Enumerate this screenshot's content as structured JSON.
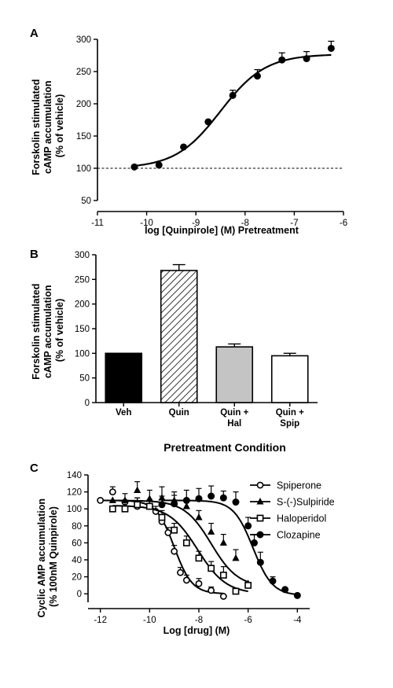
{
  "chart_data": [
    {
      "panel": "A",
      "type": "line",
      "ylabel": [
        "Forskolin stimulated",
        "cAMP accumulation",
        "(% of vehicle)"
      ],
      "xlabel": "log [Quinpirole] (M) Pretreatment",
      "xlim": [
        -11,
        -6
      ],
      "ylim": [
        50,
        300
      ],
      "xticks": [
        -11,
        -10,
        -9,
        -8,
        -7,
        -6
      ],
      "yticks": [
        50,
        100,
        150,
        200,
        250,
        300
      ],
      "reference_line": 100,
      "fit": {
        "bottom": 100,
        "top": 277,
        "logEC50": -8.5,
        "hill": 0.95
      },
      "series": [
        {
          "x": [
            -10.25,
            -9.75,
            -9.25,
            -8.75,
            -8.25,
            -7.75,
            -7.25,
            -6.75,
            -6.25
          ],
          "y": [
            102,
            105,
            133,
            172,
            213,
            243,
            268,
            270,
            286
          ],
          "err": [
            0,
            0,
            0,
            0,
            8,
            10,
            11,
            11,
            11
          ]
        }
      ]
    },
    {
      "panel": "B",
      "type": "bar",
      "ylabel": [
        "Forskolin stimulated",
        "cAMP accumulation",
        "(% of vehicle)"
      ],
      "xlabel": "Pretreatment Condition",
      "ylim": [
        0,
        300
      ],
      "yticks": [
        0,
        50,
        100,
        150,
        200,
        250,
        300
      ],
      "categories": [
        [
          "Veh"
        ],
        [
          "Quin"
        ],
        [
          "Quin +",
          "Hal"
        ],
        [
          "Quin +",
          "Spip"
        ]
      ],
      "values": [
        100,
        268,
        113,
        95
      ],
      "err": [
        0,
        12,
        6,
        5
      ],
      "fills": [
        "#000000",
        "hatch",
        "#c4c4c4",
        "#ffffff"
      ]
    },
    {
      "panel": "C",
      "type": "line",
      "ylabel": [
        "Cyclic AMP accumulation",
        "(% 100nM Quinpirole)"
      ],
      "xlabel": "Log [drug] (M)",
      "xlim": [
        -12.5,
        -3.5
      ],
      "ylim": [
        -10,
        140
      ],
      "xticks": [
        -12,
        -10,
        -8,
        -6,
        -4
      ],
      "yticks": [
        0,
        20,
        40,
        60,
        80,
        100,
        120,
        140
      ],
      "series": [
        {
          "name": "Spiperone",
          "marker": "circle-open",
          "x": [
            -12,
            -11.5,
            -11,
            -10.5,
            -10,
            -9.75,
            -9.5,
            -9.25,
            -9,
            -8.75,
            -8.5,
            -8,
            -7.5,
            -7
          ],
          "y": [
            110,
            120,
            108,
            103,
            103,
            97,
            85,
            72,
            50,
            25,
            16,
            12,
            4,
            -3
          ],
          "err": [
            0,
            6,
            10,
            10,
            8,
            6,
            7,
            6,
            7,
            6,
            6,
            6,
            4,
            0
          ],
          "fit": {
            "top": 110,
            "bottom": 0,
            "logIC50": -9.0,
            "hill": 1.2
          }
        },
        {
          "name": "S-(-)Sulpiride",
          "marker": "triangle-filled",
          "x": [
            -11.5,
            -11,
            -10.5,
            -10,
            -9.5,
            -9,
            -8.5,
            -8,
            -7.5,
            -7,
            -6.5,
            -6
          ],
          "y": [
            110,
            110,
            122,
            112,
            113,
            110,
            103,
            90,
            73,
            60,
            42,
            12
          ],
          "err": [
            0,
            0,
            10,
            10,
            13,
            10,
            8,
            8,
            10,
            10,
            10,
            0
          ],
          "fit": {
            "top": 110,
            "bottom": 8,
            "logIC50": -7.5,
            "hill": 0.8
          }
        },
        {
          "name": "Haloperidol",
          "marker": "square-open",
          "x": [
            -11.5,
            -11,
            -10.5,
            -10,
            -9.5,
            -9,
            -8.5,
            -8,
            -7.5,
            -7,
            -6.5,
            -6
          ],
          "y": [
            100,
            100,
            105,
            103,
            90,
            75,
            60,
            42,
            30,
            22,
            3,
            10
          ],
          "err": [
            0,
            8,
            8,
            8,
            8,
            8,
            8,
            8,
            8,
            10,
            0,
            0
          ],
          "fit": {
            "top": 104,
            "bottom": 0,
            "logIC50": -8.05,
            "hill": 0.75
          }
        },
        {
          "name": "Clozapine",
          "marker": "circle-filled",
          "x": [
            -9.5,
            -9,
            -8.5,
            -8,
            -7.5,
            -7,
            -6.5,
            -6,
            -5.75,
            -5.5,
            -5,
            -4.5,
            -4
          ],
          "y": [
            105,
            106,
            110,
            112,
            115,
            113,
            108,
            80,
            60,
            37,
            15,
            5,
            -2
          ],
          "err": [
            10,
            10,
            12,
            12,
            12,
            8,
            12,
            10,
            10,
            12,
            5,
            0,
            0
          ],
          "fit": {
            "top": 110,
            "bottom": -2,
            "logIC50": -5.8,
            "hill": 1.1
          }
        }
      ]
    }
  ]
}
